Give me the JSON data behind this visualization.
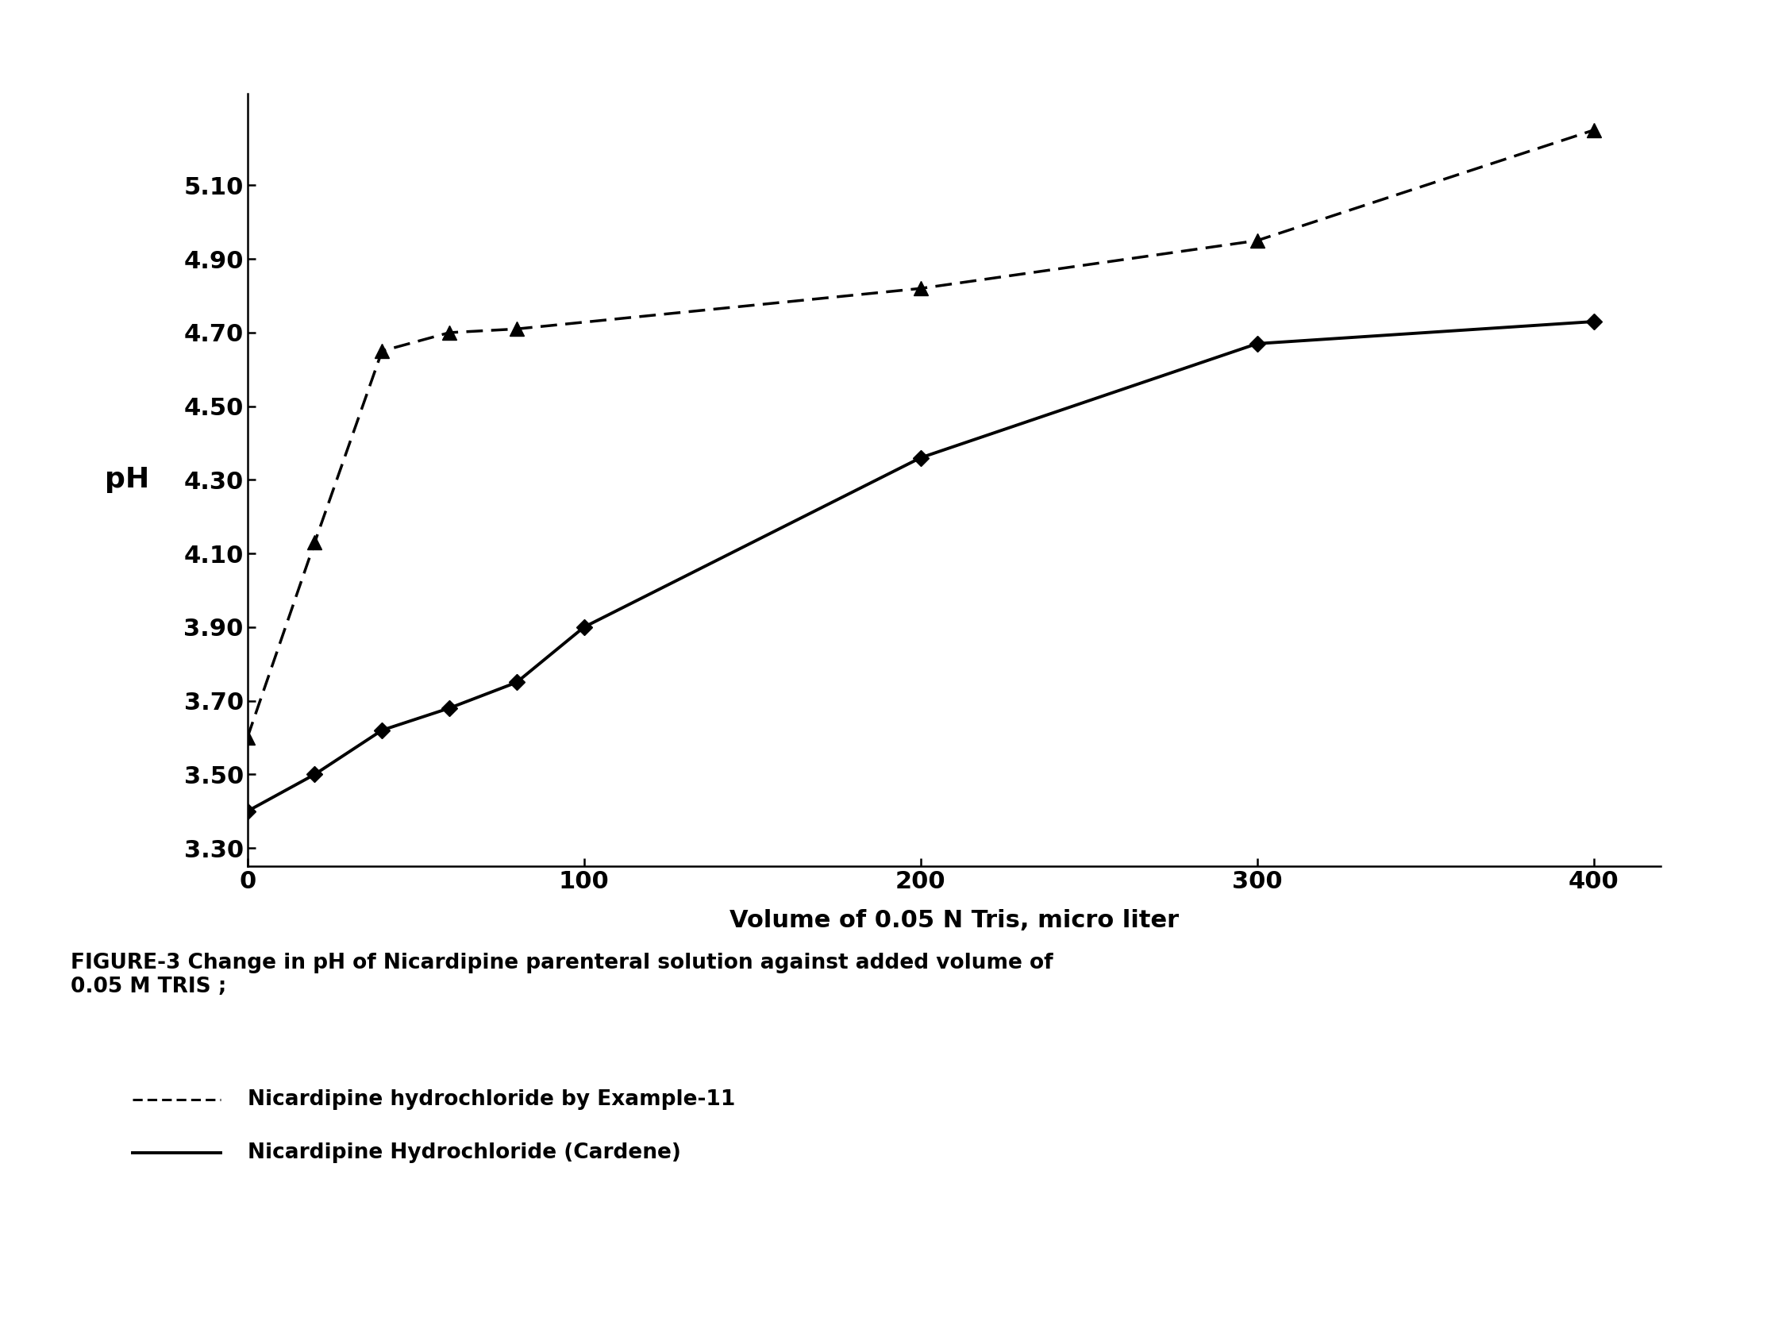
{
  "solid_x": [
    0,
    20,
    40,
    60,
    80,
    100,
    200,
    300,
    400
  ],
  "solid_y": [
    3.4,
    3.5,
    3.62,
    3.68,
    3.75,
    3.9,
    4.36,
    4.67,
    4.73
  ],
  "dashed_x": [
    0,
    20,
    40,
    60,
    80,
    200,
    300,
    400
  ],
  "dashed_y": [
    3.6,
    4.13,
    4.65,
    4.7,
    4.71,
    4.82,
    4.95,
    5.25
  ],
  "xlabel": "Volume of 0.05 N Tris, micro liter",
  "ylabel": "pH",
  "yticks": [
    3.3,
    3.5,
    3.7,
    3.9,
    4.1,
    4.3,
    4.5,
    4.7,
    4.9,
    5.1
  ],
  "ytick_labels": [
    "3.30",
    "3.50",
    "3.70",
    "3.90",
    "4.10",
    "4.30",
    "4.50",
    "4.70",
    "4.90",
    "5.10"
  ],
  "xticks": [
    0,
    100,
    200,
    300,
    400
  ],
  "xlim": [
    0,
    420
  ],
  "ylim": [
    3.25,
    5.35
  ],
  "line_color": "#000000",
  "caption_title": "FIGURE-3 Change in pH of Nicardipine parenteral solution against added volume of\n0.05 M TRIS ;",
  "legend_dashed_label": "Nicardipine hydrochloride by Example-11",
  "legend_solid_label": "Nicardipine Hydrochloride (Cardene)",
  "xlabel_fontsize": 22,
  "ylabel_fontsize": 26,
  "tick_fontsize": 22,
  "caption_fontsize": 19,
  "legend_fontsize": 19
}
